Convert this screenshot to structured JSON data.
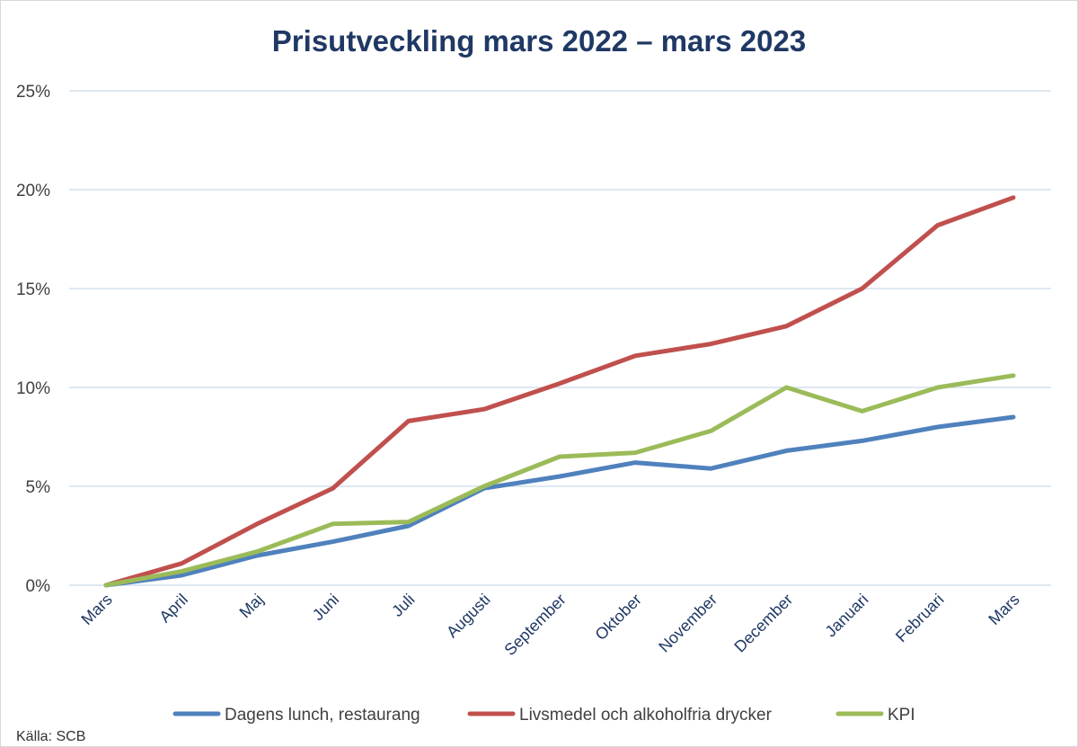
{
  "chart_data": {
    "type": "line",
    "title": "Prisutveckling mars 2022 – mars 2023",
    "xlabel": "",
    "ylabel": "",
    "ylim": [
      0,
      25
    ],
    "y_ticks": [
      "0%",
      "5%",
      "10%",
      "15%",
      "20%",
      "25%"
    ],
    "y_tick_values": [
      0,
      5,
      10,
      15,
      20,
      25
    ],
    "categories": [
      "Mars",
      "April",
      "Maj",
      "Juni",
      "Juli",
      "Augusti",
      "September",
      "Oktober",
      "November",
      "December",
      "Januari",
      "Februari",
      "Mars"
    ],
    "series": [
      {
        "name": "Dagens lunch, restaurang",
        "color": "#4f81bd",
        "values": [
          0,
          0.5,
          1.5,
          2.2,
          3.0,
          4.9,
          5.5,
          6.2,
          5.9,
          6.8,
          7.3,
          8.0,
          8.5
        ]
      },
      {
        "name": "Livsmedel och alkoholfria drycker",
        "color": "#c0504d",
        "values": [
          0,
          1.1,
          3.1,
          4.9,
          8.3,
          8.9,
          10.2,
          11.6,
          12.2,
          13.1,
          15.0,
          18.2,
          19.6
        ]
      },
      {
        "name": "KPI",
        "color": "#9bbb59",
        "values": [
          0,
          0.7,
          1.7,
          3.1,
          3.2,
          5.0,
          6.5,
          6.7,
          7.8,
          10.0,
          8.8,
          10.0,
          10.6
        ]
      }
    ],
    "grid": true,
    "legend_position": "bottom"
  },
  "source_note": "Källa: SCB"
}
